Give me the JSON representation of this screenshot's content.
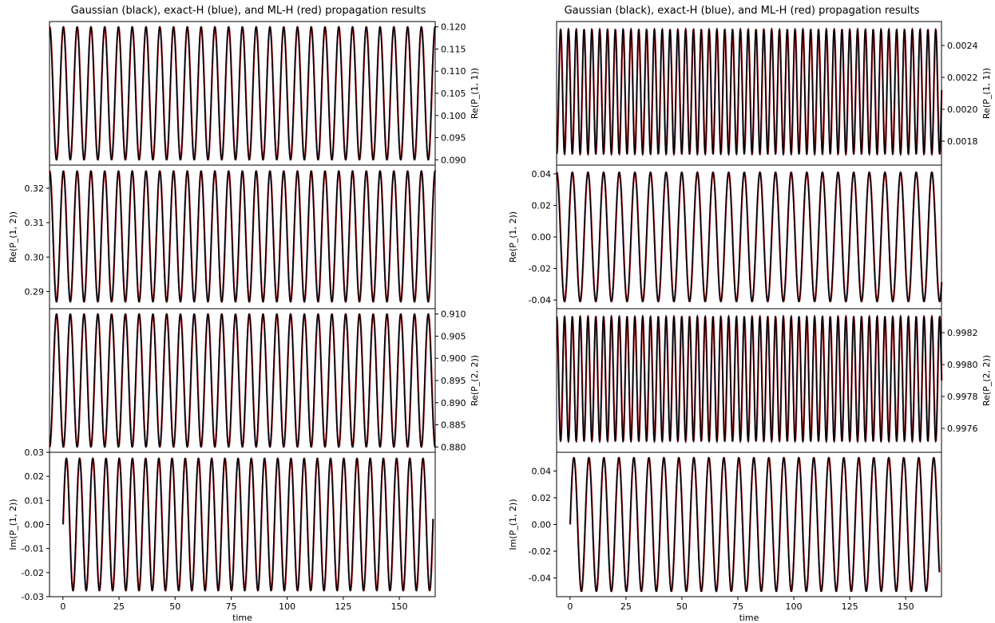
{
  "figure_titles": [
    "Gaussian (black), exact-H (blue), and ML-H (red) propagation results",
    "Gaussian (black), exact-H (blue), and ML-H (red) propagation results"
  ],
  "colors": {
    "gaussian": "#000000",
    "exact_h": "#1f3fbf",
    "ml_h": "#d62728"
  },
  "chart_data": [
    {
      "type": "line",
      "column": "left",
      "ylabel": "Re(P_(1, 1))",
      "xlim": [
        0,
        165
      ],
      "ylim": [
        0.0888,
        0.1212
      ],
      "yticks": [
        0.09,
        0.095,
        0.1,
        0.105,
        0.11,
        0.115,
        0.12
      ],
      "ytick_labels": [
        "0.090",
        "0.095",
        "0.100",
        "0.105",
        "0.110",
        "0.115",
        "0.120"
      ],
      "x_ticks_shown": false,
      "xlabel": "",
      "signal": {
        "mean": 0.105,
        "amplitude": 0.015,
        "period": 5.89,
        "start": "max",
        "cycles": 28
      },
      "series": [
        {
          "name": "Gaussian"
        },
        {
          "name": "exact-H"
        },
        {
          "name": "ML-H"
        }
      ]
    },
    {
      "type": "line",
      "column": "left",
      "ylabel": "Re(P_(1, 2))",
      "xlim": [
        0,
        165
      ],
      "ylim": [
        0.285,
        0.3267
      ],
      "yticks": [
        0.29,
        0.3,
        0.31,
        0.32
      ],
      "ytick_labels": [
        "0.29",
        "0.30",
        "0.31",
        "0.32"
      ],
      "x_ticks_shown": false,
      "xlabel": "",
      "signal": {
        "mean": 0.306,
        "amplitude": 0.019,
        "period": 5.89,
        "start": "max",
        "cycles": 28
      },
      "series": [
        {
          "name": "Gaussian"
        },
        {
          "name": "exact-H"
        },
        {
          "name": "ML-H"
        }
      ]
    },
    {
      "type": "line",
      "column": "left",
      "ylabel": "Re(P_(2, 2))",
      "xlim": [
        0,
        165
      ],
      "ylim": [
        0.8788,
        0.9112
      ],
      "yticks": [
        0.88,
        0.885,
        0.89,
        0.895,
        0.9,
        0.905,
        0.91
      ],
      "ytick_labels": [
        "0.880",
        "0.885",
        "0.890",
        "0.895",
        "0.900",
        "0.905",
        "0.910"
      ],
      "x_ticks_shown": false,
      "xlabel": "",
      "signal": {
        "mean": 0.895,
        "amplitude": 0.015,
        "period": 5.89,
        "start": "min",
        "cycles": 28
      },
      "series": [
        {
          "name": "Gaussian"
        },
        {
          "name": "exact-H"
        },
        {
          "name": "ML-H"
        }
      ]
    },
    {
      "type": "line",
      "column": "left",
      "ylabel": "Im(P_(1, 2))",
      "xlim": [
        -6,
        166
      ],
      "ylim": [
        -0.03,
        0.03
      ],
      "yticks": [
        -0.03,
        -0.02,
        -0.01,
        0.0,
        0.01,
        0.02,
        0.03
      ],
      "ytick_labels": [
        "-0.03",
        "-0.02",
        "-0.01",
        "0.00",
        "0.01",
        "0.02",
        "0.03"
      ],
      "xticks": [
        0,
        25,
        50,
        75,
        100,
        125,
        150
      ],
      "xtick_labels": [
        "0",
        "25",
        "50",
        "75",
        "100",
        "125",
        "150"
      ],
      "x_ticks_shown": true,
      "xlabel": "time",
      "signal": {
        "mean": 0.0,
        "amplitude": 0.0275,
        "period": 5.89,
        "start": "zero_up",
        "cycles": 28
      },
      "series": [
        {
          "name": "Gaussian"
        },
        {
          "name": "exact-H"
        },
        {
          "name": "ML-H"
        }
      ]
    },
    {
      "type": "line",
      "column": "right",
      "ylabel": "Re(P_(1, 1))",
      "xlim": [
        0,
        165
      ],
      "ylim": [
        0.00165,
        0.00255
      ],
      "yticks": [
        0.0018,
        0.002,
        0.0022,
        0.0024
      ],
      "ytick_labels": [
        "0.0018",
        "0.0020",
        "0.0022",
        "0.0024"
      ],
      "x_ticks_shown": false,
      "xlabel": "",
      "signal": {
        "mean": 0.00211,
        "amplitude": 0.00039,
        "period": 3.35,
        "start": "min",
        "cycles": 49
      },
      "series": [
        {
          "name": "Gaussian"
        },
        {
          "name": "exact-H"
        },
        {
          "name": "ML-H"
        }
      ]
    },
    {
      "type": "line",
      "column": "right",
      "ylabel": "Re(P_(1, 2))",
      "xlim": [
        0,
        165
      ],
      "ylim": [
        -0.0455,
        0.0455
      ],
      "yticks": [
        -0.04,
        -0.02,
        0.0,
        0.02,
        0.04
      ],
      "ytick_labels": [
        "-0.04",
        "-0.02",
        "0.00",
        "0.02",
        "0.04"
      ],
      "x_ticks_shown": false,
      "xlabel": "",
      "signal": {
        "mean": 0.0,
        "amplitude": 0.041,
        "period": 6.7,
        "start": "max",
        "cycles": 25
      },
      "series": [
        {
          "name": "Gaussian"
        },
        {
          "name": "exact-H"
        },
        {
          "name": "ML-H"
        }
      ]
    },
    {
      "type": "line",
      "column": "right",
      "ylabel": "Re(P_(2, 2))",
      "xlim": [
        0,
        165
      ],
      "ylim": [
        0.99745,
        0.99835
      ],
      "yticks": [
        0.9976,
        0.9978,
        0.998,
        0.9982
      ],
      "ytick_labels": [
        "0.9976",
        "0.9978",
        "0.9980",
        "0.9982"
      ],
      "x_ticks_shown": false,
      "xlabel": "",
      "signal": {
        "mean": 0.99791,
        "amplitude": 0.00039,
        "period": 3.35,
        "start": "max",
        "cycles": 49
      },
      "series": [
        {
          "name": "Gaussian"
        },
        {
          "name": "exact-H"
        },
        {
          "name": "ML-H"
        }
      ]
    },
    {
      "type": "line",
      "column": "right",
      "ylabel": "Im(P_(1, 2))",
      "xlim": [
        -6,
        166
      ],
      "ylim": [
        -0.054,
        0.054
      ],
      "yticks": [
        -0.04,
        -0.02,
        0.0,
        0.02,
        0.04
      ],
      "ytick_labels": [
        "-0.04",
        "-0.02",
        "0.00",
        "0.02",
        "0.04"
      ],
      "xticks": [
        0,
        25,
        50,
        75,
        100,
        125,
        150
      ],
      "xtick_labels": [
        "0",
        "25",
        "50",
        "75",
        "100",
        "125",
        "150"
      ],
      "x_ticks_shown": true,
      "xlabel": "time",
      "signal": {
        "mean": 0.0,
        "amplitude": 0.05,
        "period": 6.7,
        "start": "zero_up",
        "cycles": 25
      },
      "series": [
        {
          "name": "Gaussian"
        },
        {
          "name": "exact-H"
        },
        {
          "name": "ML-H"
        }
      ]
    }
  ]
}
